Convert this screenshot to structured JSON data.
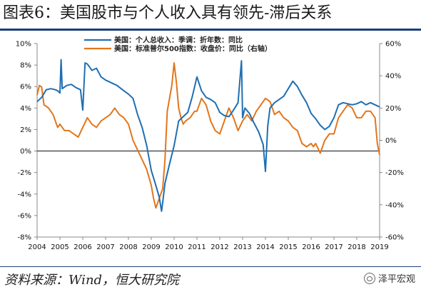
{
  "header": {
    "title": "图表6：美国股市与个人收入具有领先-滞后关系"
  },
  "footer": {
    "source": "资料来源：Wind，恒大研究院",
    "watermark": "泽平宏观"
  },
  "colors": {
    "income": "#1f6fb2",
    "sp500": "#e2761c",
    "rule": "#1c3f7a"
  },
  "chart_data": {
    "type": "line",
    "x_ticks": [
      "2004",
      "2005",
      "2006",
      "2007",
      "2008",
      "2009",
      "2010",
      "2011",
      "2012",
      "2013",
      "2014",
      "2015",
      "2016",
      "2017",
      "2018",
      "2019"
    ],
    "xlim": [
      2004,
      2019
    ],
    "y_left": {
      "ticks": [
        "10%",
        "8%",
        "6%",
        "4%",
        "2%",
        "0%",
        "-2%",
        "-4%",
        "-6%",
        "-8%"
      ],
      "lim": [
        -8,
        10
      ]
    },
    "y_right": {
      "ticks": [
        "60%",
        "40%",
        "20%",
        "0%",
        "-20%",
        "-40%",
        "-60%"
      ],
      "lim": [
        -60,
        60
      ]
    },
    "series": [
      {
        "name": "美国：个人总收入：季调：折年数：同比",
        "axis": "left",
        "x": [
          2004.0,
          2004.2,
          2004.4,
          2004.6,
          2004.8,
          2004.9,
          2005.0,
          2005.05,
          2005.1,
          2005.3,
          2005.5,
          2005.7,
          2005.9,
          2006.0,
          2006.1,
          2006.2,
          2006.4,
          2006.6,
          2006.8,
          2007.0,
          2007.2,
          2007.5,
          2007.8,
          2008.0,
          2008.2,
          2008.4,
          2008.6,
          2008.8,
          2009.0,
          2009.2,
          2009.35,
          2009.45,
          2009.5,
          2009.6,
          2009.8,
          2010.0,
          2010.2,
          2010.4,
          2010.6,
          2010.8,
          2011.0,
          2011.2,
          2011.4,
          2011.6,
          2011.8,
          2012.0,
          2012.2,
          2012.4,
          2012.6,
          2012.8,
          2012.95,
          2013.0,
          2013.1,
          2013.3,
          2013.5,
          2013.7,
          2013.9,
          2014.0,
          2014.1,
          2014.2,
          2014.4,
          2014.6,
          2014.8,
          2015.0,
          2015.2,
          2015.4,
          2015.6,
          2015.8,
          2016.0,
          2016.2,
          2016.4,
          2016.6,
          2016.8,
          2017.0,
          2017.2,
          2017.4,
          2017.6,
          2017.8,
          2018.0,
          2018.2,
          2018.4,
          2018.6,
          2018.8,
          2019.0
        ],
        "values": [
          4.6,
          5.0,
          5.7,
          5.8,
          5.7,
          5.6,
          5.4,
          8.5,
          5.8,
          6.1,
          6.2,
          5.9,
          5.7,
          3.8,
          8.2,
          8.1,
          7.5,
          7.7,
          6.9,
          6.6,
          6.4,
          6.1,
          5.6,
          5.3,
          4.9,
          3.4,
          2.2,
          0.5,
          -1.8,
          -3.2,
          -4.3,
          -5.6,
          -4.8,
          -3.0,
          -1.2,
          0.5,
          2.8,
          3.2,
          3.6,
          5.1,
          6.9,
          5.6,
          5.0,
          4.8,
          4.5,
          3.6,
          3.3,
          3.2,
          3.8,
          4.5,
          8.4,
          3.1,
          4.0,
          3.5,
          2.6,
          1.8,
          0.6,
          -1.9,
          2.3,
          4.0,
          4.5,
          4.8,
          5.1,
          5.8,
          6.5,
          6.0,
          5.2,
          4.5,
          3.5,
          3.0,
          2.4,
          2.0,
          2.3,
          3.1,
          4.3,
          4.5,
          4.4,
          4.3,
          4.4,
          4.6,
          4.3,
          4.5,
          4.3,
          4.1
        ]
      },
      {
        "name": "美国：标准普尔500指数：收盘价：同比（右轴）",
        "axis": "right",
        "x": [
          2004.0,
          2004.1,
          2004.2,
          2004.3,
          2004.5,
          2004.7,
          2004.9,
          2005.0,
          2005.2,
          2005.4,
          2005.6,
          2005.8,
          2006.0,
          2006.2,
          2006.4,
          2006.6,
          2006.8,
          2007.0,
          2007.2,
          2007.4,
          2007.6,
          2007.8,
          2008.0,
          2008.2,
          2008.4,
          2008.6,
          2008.8,
          2009.0,
          2009.1,
          2009.2,
          2009.3,
          2009.5,
          2009.6,
          2009.7,
          2009.9,
          2010.0,
          2010.1,
          2010.2,
          2010.3,
          2010.4,
          2010.5,
          2010.7,
          2010.9,
          2011.0,
          2011.2,
          2011.4,
          2011.6,
          2011.8,
          2012.0,
          2012.2,
          2012.4,
          2012.6,
          2012.8,
          2013.0,
          2013.2,
          2013.4,
          2013.6,
          2013.8,
          2014.0,
          2014.2,
          2014.4,
          2014.6,
          2014.8,
          2015.0,
          2015.2,
          2015.4,
          2015.6,
          2015.8,
          2016.0,
          2016.1,
          2016.2,
          2016.4,
          2016.6,
          2016.8,
          2017.0,
          2017.2,
          2017.4,
          2017.6,
          2017.8,
          2018.0,
          2018.2,
          2018.4,
          2018.6,
          2018.8,
          2018.9,
          2019.0
        ],
        "values": [
          28,
          34,
          33,
          22,
          20,
          16,
          8,
          10,
          6,
          6,
          4,
          2,
          8,
          14,
          10,
          8,
          12,
          14,
          16,
          20,
          16,
          14,
          10,
          0,
          -6,
          -12,
          -18,
          -28,
          -36,
          -42,
          -38,
          -30,
          -12,
          18,
          34,
          48,
          36,
          20,
          14,
          10,
          12,
          14,
          18,
          18,
          26,
          22,
          12,
          6,
          4,
          12,
          20,
          14,
          6,
          12,
          16,
          12,
          18,
          22,
          26,
          24,
          16,
          18,
          14,
          12,
          8,
          6,
          -2,
          -4,
          -2,
          -4,
          -2,
          -8,
          0,
          4,
          4,
          14,
          18,
          22,
          20,
          14,
          14,
          18,
          18,
          14,
          -2,
          -9
        ]
      }
    ]
  }
}
